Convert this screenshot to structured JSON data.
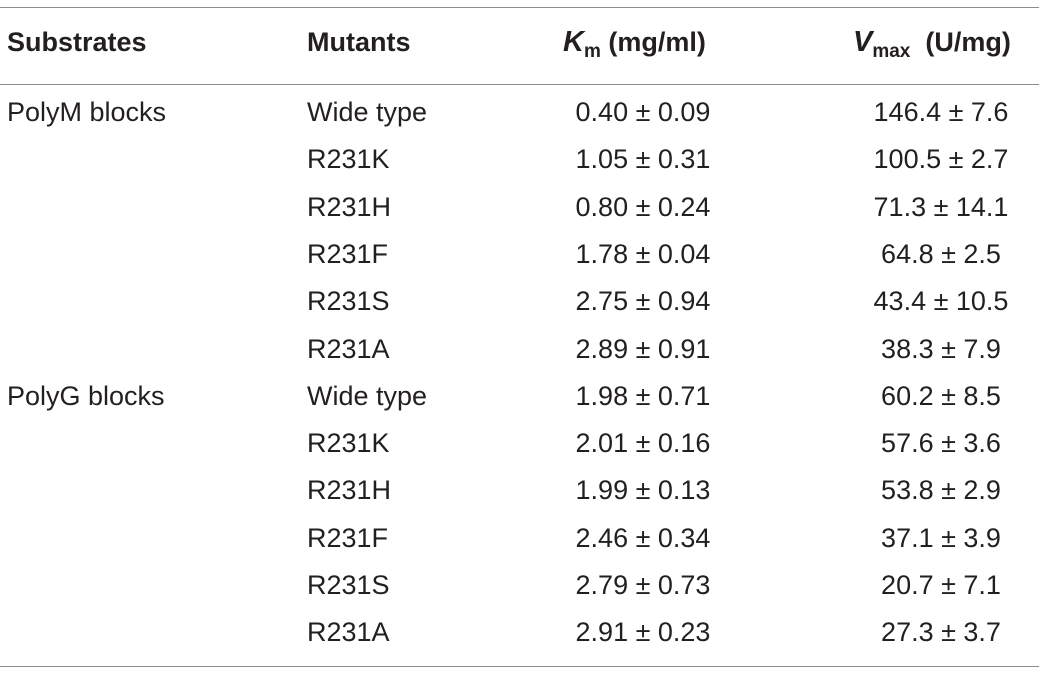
{
  "table": {
    "headers": {
      "substrates": "Substrates",
      "mutants": "Mutants",
      "km_symbol": "K",
      "km_sub": "m",
      "km_unit": "(mg/ml)",
      "vmax_symbol": "V",
      "vmax_sub": "max",
      "vmax_unit": "(U/mg)"
    },
    "rows": [
      {
        "substrate": "PolyM blocks",
        "mutant": "Wide type",
        "km": "0.40 ± 0.09",
        "vmax": "146.4 ± 7.6"
      },
      {
        "substrate": "",
        "mutant": "R231K",
        "km": "1.05 ± 0.31",
        "vmax": "100.5 ± 2.7"
      },
      {
        "substrate": "",
        "mutant": "R231H",
        "km": "0.80 ± 0.24",
        "vmax": "71.3 ± 14.1"
      },
      {
        "substrate": "",
        "mutant": "R231F",
        "km": "1.78 ± 0.04",
        "vmax": "64.8 ± 2.5"
      },
      {
        "substrate": "",
        "mutant": "R231S",
        "km": "2.75 ± 0.94",
        "vmax": "43.4 ± 10.5"
      },
      {
        "substrate": "",
        "mutant": "R231A",
        "km": "2.89 ± 0.91",
        "vmax": "38.3 ± 7.9"
      },
      {
        "substrate": "PolyG blocks",
        "mutant": "Wide type",
        "km": "1.98 ± 0.71",
        "vmax": "60.2 ± 8.5"
      },
      {
        "substrate": "",
        "mutant": "R231K",
        "km": "2.01 ± 0.16",
        "vmax": "57.6 ± 3.6"
      },
      {
        "substrate": "",
        "mutant": "R231H",
        "km": "1.99 ± 0.13",
        "vmax": "53.8 ± 2.9"
      },
      {
        "substrate": "",
        "mutant": "R231F",
        "km": "2.46 ± 0.34",
        "vmax": "37.1 ± 3.9"
      },
      {
        "substrate": "",
        "mutant": "R231S",
        "km": "2.79 ± 0.73",
        "vmax": "20.7 ± 7.1"
      },
      {
        "substrate": "",
        "mutant": "R231A",
        "km": "2.91 ± 0.23",
        "vmax": "27.3 ± 3.7"
      }
    ]
  }
}
